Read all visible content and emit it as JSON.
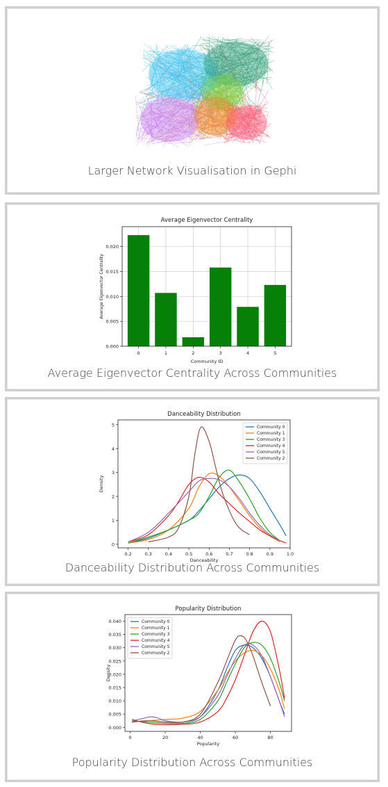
{
  "cards": [
    {
      "caption": "Larger Network Visualisation in Gephi"
    },
    {
      "caption": "Average Eigenvector Centrality Across Communities"
    },
    {
      "caption": "Danceability Distribution Across Communities"
    },
    {
      "caption": "Popularity Distribution Across Communities"
    }
  ],
  "network": {
    "colors": [
      "#3cc3f0",
      "#2e9e78",
      "#7fd245",
      "#c983ee",
      "#f08a2a",
      "#ff5d7a"
    ]
  },
  "chart_data": [
    {
      "type": "bar",
      "title": "Average Eigenvector Centrality",
      "xlabel": "Community ID",
      "ylabel": "Average Eigenvector Centrality",
      "categories": [
        "0",
        "1",
        "2",
        "3",
        "4",
        "5"
      ],
      "values": [
        0.0223,
        0.0107,
        0.0018,
        0.0158,
        0.0079,
        0.0123
      ],
      "ylim": [
        0,
        0.024
      ],
      "yticks": [
        "0.000",
        "0.005",
        "0.010",
        "0.015",
        "0.020"
      ],
      "color": "#068006",
      "grid": true
    },
    {
      "type": "line",
      "title": "Danceability Distribution",
      "xlabel": "Danceability",
      "ylabel": "Density",
      "xlim": [
        0.15,
        1.0
      ],
      "ylim": [
        -0.15,
        5.2
      ],
      "xticks": [
        "0.2",
        "0.3",
        "0.4",
        "0.5",
        "0.6",
        "0.7",
        "0.8",
        "0.9",
        "1.0"
      ],
      "yticks": [
        "0",
        "1",
        "2",
        "3",
        "4",
        "5"
      ],
      "legend": "top-right",
      "series": [
        {
          "name": "Community 0",
          "color": "#1f77b4",
          "x": [
            0.2,
            0.3,
            0.4,
            0.5,
            0.55,
            0.6,
            0.65,
            0.7,
            0.75,
            0.8,
            0.85,
            0.9,
            0.95,
            0.98
          ],
          "y": [
            0.05,
            0.25,
            0.6,
            1.0,
            1.4,
            1.9,
            2.4,
            2.75,
            2.9,
            2.75,
            2.2,
            1.5,
            0.8,
            0.35
          ]
        },
        {
          "name": "Community 1",
          "color": "#ff7f0e",
          "x": [
            0.2,
            0.3,
            0.4,
            0.5,
            0.55,
            0.6,
            0.65,
            0.7,
            0.75,
            0.8,
            0.85,
            0.9,
            0.95
          ],
          "y": [
            0.05,
            0.2,
            0.6,
            1.5,
            2.4,
            2.95,
            2.85,
            2.4,
            1.8,
            1.2,
            0.7,
            0.35,
            0.1
          ]
        },
        {
          "name": "Community 3",
          "color": "#2ca02c",
          "x": [
            0.2,
            0.3,
            0.4,
            0.5,
            0.55,
            0.6,
            0.65,
            0.7,
            0.75,
            0.8,
            0.85,
            0.9,
            0.95
          ],
          "y": [
            0.05,
            0.3,
            0.6,
            1.0,
            1.3,
            2.0,
            2.8,
            3.1,
            2.6,
            1.9,
            1.1,
            0.5,
            0.15
          ]
        },
        {
          "name": "Community 4",
          "color": "#d62728",
          "x": [
            0.2,
            0.3,
            0.4,
            0.45,
            0.5,
            0.55,
            0.6,
            0.65,
            0.7,
            0.75,
            0.8,
            0.85,
            0.9,
            0.95,
            0.98
          ],
          "y": [
            0.1,
            0.4,
            1.2,
            1.8,
            2.5,
            2.8,
            2.6,
            2.1,
            1.7,
            1.3,
            0.95,
            0.6,
            0.35,
            0.15,
            0.05
          ]
        },
        {
          "name": "Community 5",
          "color": "#9467bd",
          "x": [
            0.2,
            0.3,
            0.4,
            0.5,
            0.55,
            0.6,
            0.65,
            0.7,
            0.75,
            0.8,
            0.85,
            0.9,
            0.95
          ],
          "y": [
            0.1,
            0.5,
            1.3,
            2.2,
            2.65,
            2.75,
            2.7,
            2.4,
            1.9,
            1.3,
            0.8,
            0.4,
            0.15
          ]
        },
        {
          "name": "Community 2",
          "color": "#8c564b",
          "x": [
            0.3,
            0.4,
            0.45,
            0.5,
            0.53,
            0.56,
            0.6,
            0.63,
            0.66,
            0.7,
            0.73,
            0.76,
            0.8
          ],
          "y": [
            0.1,
            0.3,
            0.7,
            2.0,
            3.8,
            4.9,
            4.3,
            3.3,
            2.3,
            1.4,
            0.9,
            0.6,
            0.4
          ]
        }
      ]
    },
    {
      "type": "line",
      "title": "Popularity Distribution",
      "xlabel": "Popularity",
      "ylabel": "Density",
      "xlim": [
        -3,
        92
      ],
      "ylim": [
        -0.0015,
        0.0425
      ],
      "xticks": [
        "0",
        "20",
        "40",
        "60",
        "80"
      ],
      "yticks": [
        "0.000",
        "0.005",
        "0.010",
        "0.015",
        "0.020",
        "0.025",
        "0.030",
        "0.035",
        "0.040"
      ],
      "legend": "top-left",
      "series": [
        {
          "name": "Community 0",
          "color": "#1f77b4",
          "x": [
            1,
            10,
            20,
            30,
            40,
            50,
            55,
            60,
            65,
            70,
            75,
            80,
            85,
            88
          ],
          "y": [
            0.002,
            0.0025,
            0.002,
            0.002,
            0.004,
            0.014,
            0.022,
            0.029,
            0.031,
            0.03,
            0.026,
            0.019,
            0.01,
            0.005
          ]
        },
        {
          "name": "Community 1",
          "color": "#ff7f0e",
          "x": [
            1,
            10,
            20,
            30,
            40,
            50,
            55,
            60,
            65,
            70,
            75,
            80,
            85,
            88
          ],
          "y": [
            0.002,
            0.0025,
            0.003,
            0.0035,
            0.006,
            0.014,
            0.02,
            0.025,
            0.028,
            0.029,
            0.027,
            0.022,
            0.014,
            0.007
          ]
        },
        {
          "name": "Community 3",
          "color": "#2ca02c",
          "x": [
            1,
            10,
            20,
            30,
            40,
            50,
            55,
            60,
            65,
            70,
            75,
            80,
            85,
            88
          ],
          "y": [
            0.0025,
            0.002,
            0.0015,
            0.0015,
            0.003,
            0.01,
            0.017,
            0.024,
            0.03,
            0.032,
            0.031,
            0.026,
            0.017,
            0.01
          ]
        },
        {
          "name": "Community 4",
          "color": "#d62728",
          "x": [
            1,
            10,
            20,
            30,
            40,
            50,
            55,
            60,
            65,
            70,
            75,
            80,
            85,
            88
          ],
          "y": [
            0.003,
            0.0015,
            0.001,
            0.0012,
            0.002,
            0.006,
            0.011,
            0.018,
            0.027,
            0.036,
            0.04,
            0.036,
            0.022,
            0.011
          ]
        },
        {
          "name": "Community 5",
          "color": "#9467bd",
          "x": [
            1,
            8,
            12,
            16,
            20,
            30,
            40,
            50,
            55,
            60,
            65,
            70,
            75,
            80,
            85,
            88
          ],
          "y": [
            0.0025,
            0.0035,
            0.004,
            0.0035,
            0.0025,
            0.002,
            0.004,
            0.012,
            0.019,
            0.026,
            0.031,
            0.031,
            0.027,
            0.019,
            0.01,
            0.004
          ]
        },
        {
          "name": "Community 2",
          "color": "#8c564b",
          "x": [
            1,
            10,
            20,
            30,
            40,
            50,
            55,
            60,
            63,
            66,
            70,
            75,
            80
          ],
          "y": [
            0.002,
            0.0025,
            0.002,
            0.002,
            0.005,
            0.017,
            0.025,
            0.033,
            0.0345,
            0.033,
            0.027,
            0.017,
            0.008
          ]
        }
      ]
    }
  ]
}
